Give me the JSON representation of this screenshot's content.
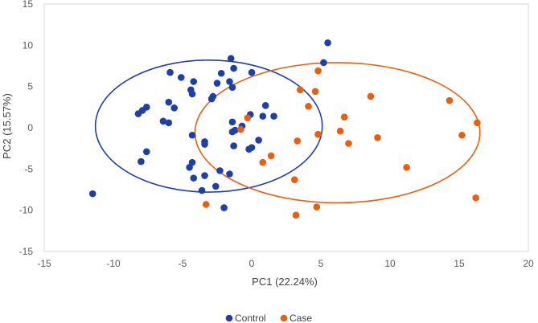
{
  "chart_data": {
    "type": "scatter",
    "title": "",
    "xlabel": "PC1 (22.24%)",
    "ylabel": "PC2 (15.57%)",
    "xlim": [
      -15,
      20
    ],
    "ylim": [
      -15,
      15
    ],
    "xticks": [
      -15,
      -10,
      -5,
      0,
      5,
      10,
      15,
      20
    ],
    "yticks": [
      -15,
      -10,
      -5,
      0,
      5,
      10,
      15
    ],
    "xtick_labels": [
      "-15",
      "-10",
      "-5",
      "0",
      "5",
      "10",
      "15",
      "20"
    ],
    "ytick_labels": [
      "-15",
      "-10",
      "-5",
      "0",
      "5",
      "10",
      "15"
    ],
    "legend_position": "bottom-center",
    "series": [
      {
        "name": "Control",
        "color": "#1f3fa8",
        "points": [
          [
            5.5,
            10.3
          ],
          [
            5.2,
            7.9
          ],
          [
            -1.5,
            8.4
          ],
          [
            -1.3,
            7.2
          ],
          [
            -2.2,
            6.6
          ],
          [
            -5.9,
            6.7
          ],
          [
            0,
            6.7
          ],
          [
            -5.1,
            6.1
          ],
          [
            -4.2,
            5.6
          ],
          [
            -1.6,
            5.6
          ],
          [
            -2.5,
            5.4
          ],
          [
            -1.4,
            4.9
          ],
          [
            -4.4,
            4.6
          ],
          [
            -4.3,
            4.1
          ],
          [
            -2.9,
            3.5
          ],
          [
            -2.8,
            3.8
          ],
          [
            -6.0,
            3.1
          ],
          [
            -7.6,
            2.5
          ],
          [
            -5.6,
            2.4
          ],
          [
            -7.9,
            2.1
          ],
          [
            -8.2,
            1.7
          ],
          [
            1.0,
            2.7
          ],
          [
            -0.1,
            1.6
          ],
          [
            0.8,
            1.4
          ],
          [
            1.6,
            1.4
          ],
          [
            -6.4,
            0.8
          ],
          [
            -6.0,
            0.6
          ],
          [
            -1.4,
            0.7
          ],
          [
            -0.7,
            0.2
          ],
          [
            -1.2,
            -0.3
          ],
          [
            -1.4,
            -0.5
          ],
          [
            -4.3,
            -0.9
          ],
          [
            0.5,
            -1.5
          ],
          [
            -3.4,
            -1.7
          ],
          [
            -3.4,
            -2.0
          ],
          [
            -1.3,
            -2.2
          ],
          [
            -0.2,
            -2.6
          ],
          [
            -7.6,
            -2.9
          ],
          [
            0.0,
            -2.4
          ],
          [
            -8.0,
            -4.1
          ],
          [
            -4.3,
            -4.2
          ],
          [
            -4.5,
            -4.8
          ],
          [
            -2.3,
            -5.2
          ],
          [
            -1.6,
            -5.6
          ],
          [
            -3.4,
            -5.8
          ],
          [
            -4.2,
            -6.1
          ],
          [
            -2.6,
            -7.1
          ],
          [
            -3.6,
            -7.6
          ],
          [
            -11.5,
            -8.0
          ],
          [
            -2.0,
            -9.7
          ]
        ]
      },
      {
        "name": "Case",
        "color": "#e8600f",
        "points": [
          [
            4.8,
            6.9
          ],
          [
            3.5,
            4.6
          ],
          [
            4.6,
            4.4
          ],
          [
            8.6,
            3.8
          ],
          [
            14.3,
            3.3
          ],
          [
            4.1,
            2.6
          ],
          [
            6.7,
            1.3
          ],
          [
            -0.3,
            1.2
          ],
          [
            16.3,
            0.6
          ],
          [
            -0.8,
            -0.2
          ],
          [
            6.4,
            -0.4
          ],
          [
            4.8,
            -0.8
          ],
          [
            15.2,
            -0.9
          ],
          [
            9.1,
            -1.2
          ],
          [
            3.3,
            -1.6
          ],
          [
            7.0,
            -1.9
          ],
          [
            1.4,
            -3.4
          ],
          [
            0.8,
            -4.2
          ],
          [
            11.2,
            -4.8
          ],
          [
            3.1,
            -6.3
          ],
          [
            -3.3,
            -9.3
          ],
          [
            4.7,
            -9.6
          ],
          [
            16.2,
            -8.5
          ],
          [
            3.2,
            -10.6
          ]
        ]
      }
    ],
    "ellipses": [
      {
        "series": "Control",
        "center": [
          -3.1,
          0.2
        ],
        "semi_axes": [
          8.2,
          8.0
        ]
      },
      {
        "series": "Case",
        "center": [
          6.2,
          -0.6
        ],
        "semi_axes": [
          10.3,
          8.5
        ]
      }
    ]
  }
}
